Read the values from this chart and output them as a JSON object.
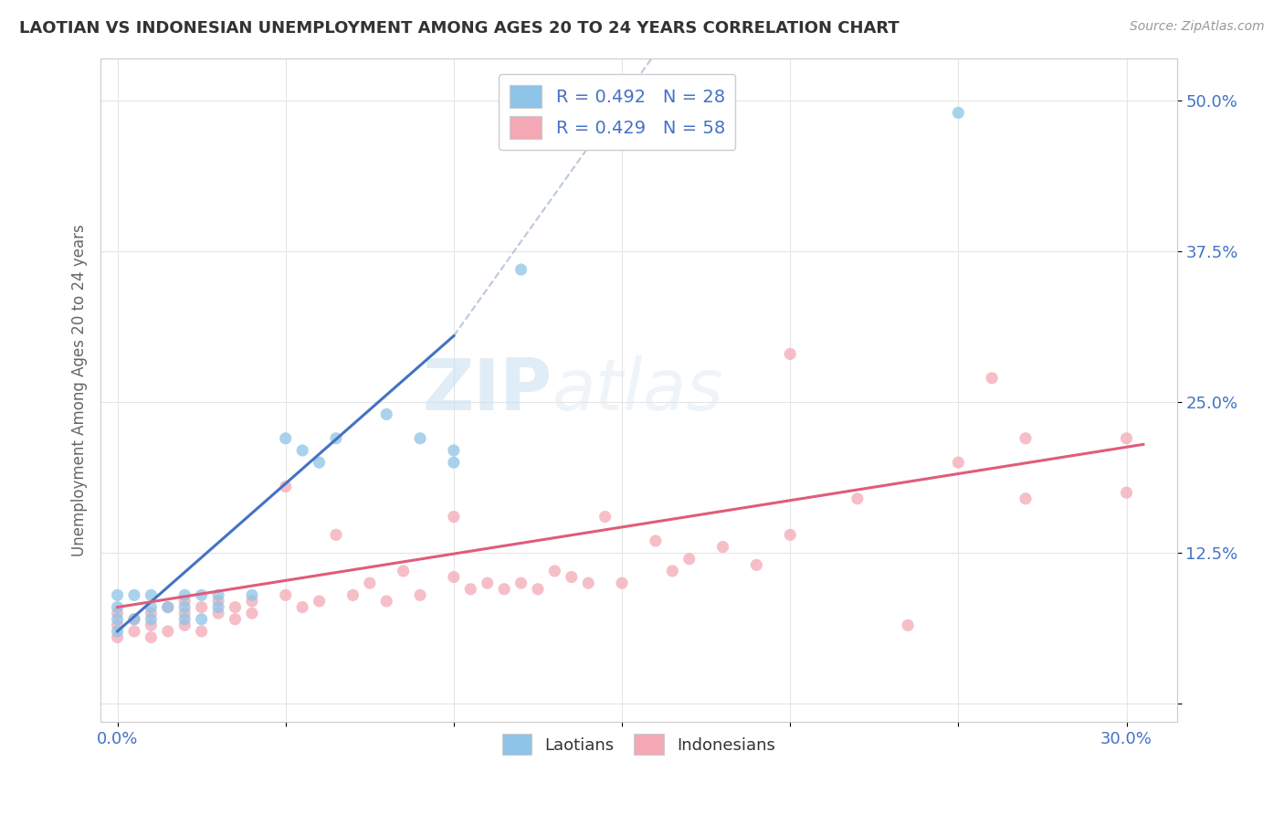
{
  "title": "LAOTIAN VS INDONESIAN UNEMPLOYMENT AMONG AGES 20 TO 24 YEARS CORRELATION CHART",
  "source": "Source: ZipAtlas.com",
  "xlim": [
    -0.005,
    0.315
  ],
  "ylim": [
    -0.015,
    0.535
  ],
  "ylabel": "Unemployment Among Ages 20 to 24 years",
  "laotian_color": "#8dc4e8",
  "indonesian_color": "#f4a8b5",
  "laotian_line_color": "#4472C4",
  "indonesian_line_color": "#e05c7a",
  "r_laotian": 0.492,
  "n_laotian": 28,
  "r_indonesian": 0.429,
  "n_indonesian": 58,
  "watermark_zip": "ZIP",
  "watermark_atlas": "atlas",
  "laotian_x": [
    0.0,
    0.0,
    0.0,
    0.0,
    0.005,
    0.005,
    0.01,
    0.01,
    0.01,
    0.015,
    0.02,
    0.02,
    0.02,
    0.025,
    0.025,
    0.03,
    0.03,
    0.04,
    0.05,
    0.06,
    0.065,
    0.09,
    0.1,
    0.1,
    0.12,
    0.25,
    0.055,
    0.08
  ],
  "laotian_y": [
    0.06,
    0.07,
    0.08,
    0.09,
    0.07,
    0.09,
    0.07,
    0.08,
    0.09,
    0.08,
    0.07,
    0.08,
    0.09,
    0.07,
    0.09,
    0.08,
    0.09,
    0.09,
    0.22,
    0.2,
    0.22,
    0.22,
    0.2,
    0.21,
    0.36,
    0.49,
    0.21,
    0.24
  ],
  "indonesian_x": [
    0.0,
    0.0,
    0.0,
    0.005,
    0.005,
    0.01,
    0.01,
    0.01,
    0.015,
    0.015,
    0.02,
    0.02,
    0.02,
    0.025,
    0.025,
    0.03,
    0.03,
    0.035,
    0.035,
    0.04,
    0.04,
    0.05,
    0.05,
    0.055,
    0.06,
    0.065,
    0.07,
    0.075,
    0.08,
    0.085,
    0.09,
    0.1,
    0.1,
    0.105,
    0.11,
    0.115,
    0.12,
    0.125,
    0.13,
    0.135,
    0.14,
    0.145,
    0.15,
    0.16,
    0.165,
    0.17,
    0.18,
    0.19,
    0.2,
    0.22,
    0.235,
    0.25,
    0.26,
    0.27,
    0.27,
    0.2,
    0.3,
    0.3
  ],
  "indonesian_y": [
    0.055,
    0.065,
    0.075,
    0.06,
    0.07,
    0.055,
    0.065,
    0.075,
    0.06,
    0.08,
    0.065,
    0.075,
    0.085,
    0.06,
    0.08,
    0.075,
    0.085,
    0.07,
    0.08,
    0.075,
    0.085,
    0.09,
    0.18,
    0.08,
    0.085,
    0.14,
    0.09,
    0.1,
    0.085,
    0.11,
    0.09,
    0.105,
    0.155,
    0.095,
    0.1,
    0.095,
    0.1,
    0.095,
    0.11,
    0.105,
    0.1,
    0.155,
    0.1,
    0.135,
    0.11,
    0.12,
    0.13,
    0.115,
    0.14,
    0.17,
    0.065,
    0.2,
    0.27,
    0.22,
    0.17,
    0.29,
    0.175,
    0.22
  ]
}
